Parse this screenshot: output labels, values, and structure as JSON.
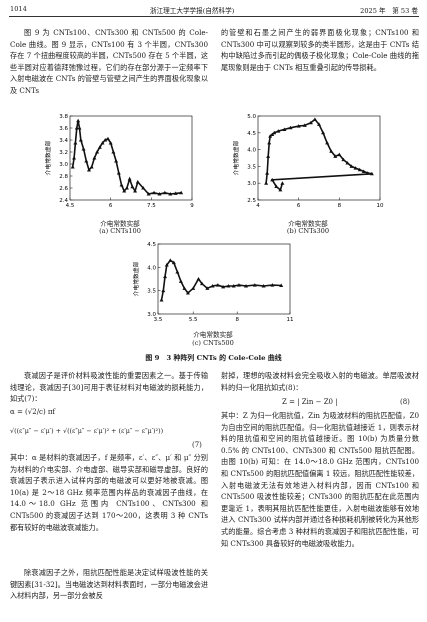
{
  "header": {
    "page_left": "1014",
    "journal": "浙江理工大学学报(自然科学)",
    "issue": "2025 年　第 53 卷"
  },
  "intro_left": "图 9 为 CNTs100、CNTs300 和 CNTs500 的 Cole-Cole 曲线。图 9 显示，CNTs100 有 3 个半圆，CNTs300 存在 7 个扭曲程度较高的半圆，CNTs500 存在 5 个半圆，这些半圆对应着德拜弛豫过程，它们的存在部分源于一定频率下入射电磁波在 CNTs 的管壁与管壁之间产生的界面极化现象以及 CNTs",
  "intro_right": "的管壁和石墨之间产生的弱界面极化现象；CNTs100 和 CNTs300 中可以观察到较多的类半圆形，这是由于 CNTs 结构中缺陷过多而引起的偶极子极化现象；Cole-Cole 曲线的拖尾现象则是由于 CNTs 相互重叠引起的传导损耗。",
  "figure": {
    "caption": "图 9　3 种阵列 CNTs 的 Cole-Cole 曲线",
    "panels": [
      {
        "sub": "(a) CNTs100",
        "xlabel": "介电常数实部",
        "ylabel": "介电常数虚部"
      },
      {
        "sub": "(b) CNTs300",
        "xlabel": "介电常数实部",
        "ylabel": "介电常数虚部"
      },
      {
        "sub": "(c) CNTs500",
        "xlabel": "介电常数实部",
        "ylabel": "介电常数虚部"
      }
    ]
  },
  "chart_data": [
    {
      "type": "scatter",
      "title": "(a) CNTs100",
      "xlabel": "介电常数实部",
      "ylabel": "介电常数虚部",
      "xlim": [
        4.5,
        9
      ],
      "ylim": [
        2.4,
        3.8
      ],
      "xticks": [
        4.5,
        6,
        7.5,
        9
      ],
      "yticks": [
        2.4,
        2.6,
        2.8,
        3.0,
        3.2,
        3.4,
        3.6,
        3.8
      ],
      "points": [
        [
          4.6,
          2.95
        ],
        [
          4.65,
          3.1
        ],
        [
          4.7,
          3.35
        ],
        [
          4.75,
          3.6
        ],
        [
          4.8,
          3.72
        ],
        [
          4.85,
          3.6
        ],
        [
          4.9,
          3.4
        ],
        [
          5.0,
          3.25
        ],
        [
          5.1,
          3.05
        ],
        [
          5.2,
          2.9
        ],
        [
          5.3,
          2.95
        ],
        [
          5.4,
          3.1
        ],
        [
          5.5,
          3.2
        ],
        [
          5.6,
          3.28
        ],
        [
          5.7,
          3.35
        ],
        [
          5.8,
          3.4
        ],
        [
          5.9,
          3.42
        ],
        [
          6.0,
          3.35
        ],
        [
          6.1,
          3.2
        ],
        [
          6.2,
          3.05
        ],
        [
          6.3,
          2.85
        ],
        [
          6.4,
          2.65
        ],
        [
          6.5,
          2.55
        ],
        [
          6.6,
          2.6
        ],
        [
          6.7,
          2.75
        ],
        [
          6.8,
          2.62
        ],
        [
          6.9,
          2.55
        ],
        [
          7.0,
          2.7
        ],
        [
          7.2,
          2.6
        ],
        [
          7.4,
          2.5
        ],
        [
          7.6,
          2.52
        ],
        [
          7.8,
          2.5
        ],
        [
          8.0,
          2.52
        ],
        [
          8.2,
          2.5
        ],
        [
          8.4,
          2.51
        ],
        [
          8.6,
          2.52
        ]
      ]
    },
    {
      "type": "scatter",
      "title": "(b) CNTs300",
      "xlabel": "介电常数实部",
      "ylabel": "介电常数虚部",
      "xlim": [
        4,
        10
      ],
      "ylim": [
        2.5,
        5.0
      ],
      "xticks": [
        4,
        6,
        8,
        10
      ],
      "yticks": [
        2.5,
        3.0,
        3.5,
        4.0,
        4.5,
        5.0
      ],
      "points": [
        [
          4.4,
          3.0
        ],
        [
          4.45,
          3.3
        ],
        [
          4.5,
          3.8
        ],
        [
          4.55,
          4.2
        ],
        [
          4.6,
          4.4
        ],
        [
          4.7,
          4.45
        ],
        [
          4.8,
          4.5
        ],
        [
          5.0,
          4.55
        ],
        [
          5.3,
          4.6
        ],
        [
          5.6,
          4.65
        ],
        [
          6.0,
          4.7
        ],
        [
          6.3,
          4.72
        ],
        [
          6.6,
          4.8
        ],
        [
          6.8,
          4.9
        ],
        [
          7.0,
          4.75
        ],
        [
          7.2,
          4.5
        ],
        [
          7.4,
          4.2
        ],
        [
          7.6,
          3.95
        ],
        [
          7.8,
          3.8
        ],
        [
          8.0,
          3.85
        ],
        [
          8.2,
          3.7
        ],
        [
          8.4,
          3.6
        ],
        [
          8.6,
          3.5
        ],
        [
          8.8,
          3.45
        ],
        [
          9.0,
          3.4
        ],
        [
          9.2,
          3.35
        ],
        [
          9.4,
          3.3
        ],
        [
          9.6,
          3.28
        ],
        [
          4.7,
          3.1
        ],
        [
          4.9,
          2.9
        ],
        [
          5.1,
          2.8
        ],
        [
          5.2,
          3.0
        ]
      ]
    },
    {
      "type": "scatter",
      "title": "(c) CNTs500",
      "xlabel": "介电常数实部",
      "ylabel": "介电常数虚部",
      "xlim": [
        3.5,
        11
      ],
      "ylim": [
        3.0,
        4.5
      ],
      "xticks": [
        3.5,
        5.5,
        8,
        11
      ],
      "yticks": [
        3.0,
        3.5,
        4.0,
        4.5
      ],
      "points": [
        [
          3.7,
          3.3
        ],
        [
          3.8,
          3.5
        ],
        [
          3.9,
          3.8
        ],
        [
          4.0,
          4.05
        ],
        [
          4.2,
          4.15
        ],
        [
          4.4,
          4.1
        ],
        [
          4.6,
          3.9
        ],
        [
          4.8,
          3.7
        ],
        [
          5.0,
          3.55
        ],
        [
          5.2,
          3.45
        ],
        [
          5.5,
          3.55
        ],
        [
          5.8,
          3.75
        ],
        [
          6.0,
          3.65
        ],
        [
          6.3,
          3.55
        ],
        [
          6.6,
          3.6
        ],
        [
          6.9,
          3.62
        ],
        [
          7.2,
          3.58
        ],
        [
          7.5,
          3.6
        ],
        [
          7.8,
          3.6
        ],
        [
          8.1,
          3.62
        ],
        [
          8.5,
          3.6
        ],
        [
          9.0,
          3.62
        ],
        [
          9.5,
          3.6
        ],
        [
          10.0,
          3.62
        ],
        [
          10.5,
          3.61
        ]
      ]
    }
  ],
  "body_left_1": "衰减因子是评价材料吸波性能的重要因素之一。基于传输线理论，衰减因子[30]可用于表征材料对电磁波的损耗能力，如式(7)：",
  "eq7_lhs": "α = (√2/c) πf",
  "eq7_rhs": "√((ε″μ″ − ε′μ′) + √((ε″μ″ − ε′μ′)² + (ε′μ″ − ε″μ′)²))",
  "eq7_num": "(7)",
  "body_left_2": "其中：α 是材料的衰减因子，f 是频率，ε′、ε″、μ′ 和 μ″ 分别为材料的介电实部、介电虚部、磁导实部和磁导虚部。良好的衰减因子表示进入试样内部的电磁波可以更好地被衰减。图 10(a) 是 2～18 GHz 频率范围内样品的衰减因子曲线，在 14.0～18.0 GHz 范围内 CNTs100、CNTs300 和 CNTs500 的衰减因子达到 170～200，这表明 3 种 CNTs 都有较好的电磁波衰减能力。",
  "body_left_3": "除衰减因子之外，阻抗匹配性能是决定试样吸波性能的关键因素[31-32]。当电磁波达到材料表面时，一部分电磁波会进入材料内部，另一部分会被反",
  "body_right_1": "射掉，理想的吸波材料会完全吸收入射的电磁波。单层吸波材料的归一化阻抗如式(8)：",
  "eq8": "Z = | Zin − Z0 |",
  "eq8_num": "(8)",
  "body_right_2": "其中：Z 为归一化阻抗值，Zin 为吸波材料的阻抗匹配值，Z0 为自由空间的阻抗匹配值。归一化阻抗值越接近 1，则表示材料的阻抗值和空间的阻抗值越接近。图 10(b) 为质量分数 0.5% 的 CNTs100、CNTs300 和 CNTs500 阻抗匹配图。由图 10(b) 可知：在 14.0～18.0 GHz 范围内，CNTs100 和 CNTs500 的阻抗匹配值偏离 1 较远，阻抗匹配性能较差，入射电磁波无法有效地进入材料内部，因而 CNTs100 和 CNTs500 吸波性能较差；CNTs300 的阻抗匹配在此范围内更靠近 1，表明其阻抗匹配性能更佳，入射电磁波能够有效地进入 CNTs300 试样内部并通过各种损耗机制被转化为其他形式的能量。综合考虑 3 种材料的衰减因子和阻抗匹配性能，可知 CNTs300 具备较好的电磁波吸收能力。"
}
